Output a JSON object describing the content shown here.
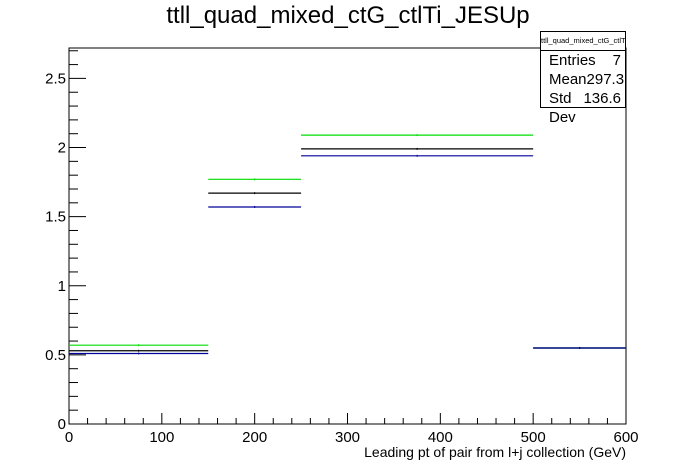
{
  "chart_data": {
    "type": "step",
    "title": "ttll_quad_mixed_ctG_ctlTi_JESUp",
    "xlabel": "Leading pt of pair from l+j collection (GeV)",
    "ylabel": "",
    "xlim": [
      0,
      600
    ],
    "ylim": [
      0,
      2.72
    ],
    "x_ticks": [
      0,
      100,
      200,
      300,
      400,
      500,
      600
    ],
    "y_ticks": [
      0,
      0.5,
      1,
      1.5,
      2,
      2.5
    ],
    "x_tick_labels": [
      "0",
      "100",
      "200",
      "300",
      "400",
      "500",
      "600"
    ],
    "y_tick_labels": [
      "0",
      "0.5",
      "1",
      "1.5",
      "2",
      "2.5"
    ],
    "bin_edges": [
      0,
      150,
      250,
      500,
      600
    ],
    "series": [
      {
        "color": "#00dd00",
        "values": [
          0.57,
          1.77,
          2.09,
          0.55
        ]
      },
      {
        "color": "#000000",
        "values": [
          0.53,
          1.67,
          1.99,
          0.55
        ]
      },
      {
        "color": "#000099",
        "values": [
          0.51,
          1.57,
          1.94,
          0.55
        ]
      }
    ],
    "stats_box": {
      "title": "ttll_quad_mixed_ctG_ctlTi_JESUp",
      "entries_label": "Entries",
      "entries": "7",
      "mean_label": "Mean",
      "mean": "297.3",
      "stddev_label": "Std Dev",
      "stddev": "136.6"
    }
  }
}
